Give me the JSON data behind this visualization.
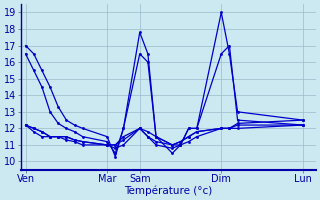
{
  "background_color": "#cce8f0",
  "grid_color": "#99bbcc",
  "line_color": "#0000cc",
  "xlabel": "Température (°c)",
  "ylim": [
    9.5,
    19.5
  ],
  "yticks": [
    10,
    11,
    12,
    13,
    14,
    15,
    16,
    17,
    18,
    19
  ],
  "xtick_labels": [
    "Ven",
    "Mar",
    "Sam",
    "Dim",
    "Lun"
  ],
  "xtick_positions": [
    0,
    5,
    7,
    12,
    17
  ],
  "series_x": [
    [
      0,
      0.5,
      1,
      1.5,
      2,
      2.5,
      3,
      3.5,
      5,
      5.5,
      6,
      7,
      7.5,
      8,
      9,
      9.5,
      10,
      10.5,
      12,
      12.5,
      13,
      17
    ],
    [
      0,
      0.5,
      1,
      1.5,
      2,
      2.5,
      3,
      3.5,
      5,
      5.5,
      6,
      7,
      7.5,
      8,
      9,
      9.5,
      10,
      10.5,
      12,
      12.5,
      13,
      17
    ],
    [
      0,
      0.5,
      1,
      1.5,
      2,
      2.5,
      3,
      3.5,
      5,
      5.5,
      6,
      7,
      7.5,
      8,
      9,
      9.5,
      10,
      10.5,
      12,
      12.5,
      13,
      17
    ],
    [
      0,
      0.5,
      1,
      1.5,
      2,
      2.5,
      3,
      3.5,
      5,
      5.5,
      6,
      7,
      7.5,
      8,
      9,
      9.5,
      10,
      10.5,
      12,
      12.5,
      13,
      17
    ],
    [
      0,
      0.5,
      1,
      1.5,
      2,
      2.5,
      3,
      3.5,
      5,
      5.5,
      6,
      7,
      7.5,
      8,
      9,
      9.5,
      10,
      10.5,
      12,
      12.5,
      13,
      17
    ]
  ],
  "series_y": [
    [
      17,
      16.5,
      15.5,
      14.5,
      13.3,
      12.5,
      12.2,
      12.0,
      11.5,
      10.3,
      12.0,
      17.8,
      16.5,
      11.5,
      11.0,
      11.0,
      12.0,
      12.0,
      19.0,
      16.5,
      13.0,
      12.5
    ],
    [
      16.5,
      15.5,
      14.5,
      13.0,
      12.3,
      12.0,
      11.8,
      11.5,
      11.2,
      10.5,
      12.0,
      16.5,
      16.0,
      11.5,
      10.5,
      11.0,
      12.0,
      12.0,
      16.5,
      17.0,
      12.5,
      12.2
    ],
    [
      12.2,
      12.0,
      11.8,
      11.5,
      11.5,
      11.5,
      11.3,
      11.2,
      11.0,
      11.0,
      11.5,
      12.0,
      11.5,
      11.2,
      11.0,
      11.2,
      11.5,
      11.8,
      12.0,
      12.0,
      12.0,
      12.2
    ],
    [
      12.2,
      12.0,
      11.8,
      11.5,
      11.5,
      11.5,
      11.3,
      11.2,
      11.0,
      11.0,
      11.3,
      12.0,
      11.8,
      11.5,
      11.0,
      11.2,
      11.5,
      11.8,
      12.0,
      12.0,
      12.2,
      12.2
    ],
    [
      12.2,
      11.8,
      11.5,
      11.5,
      11.5,
      11.3,
      11.2,
      11.0,
      11.0,
      10.8,
      11.0,
      12.0,
      11.5,
      11.0,
      10.8,
      11.0,
      11.2,
      11.5,
      12.0,
      12.0,
      12.3,
      12.5
    ]
  ]
}
